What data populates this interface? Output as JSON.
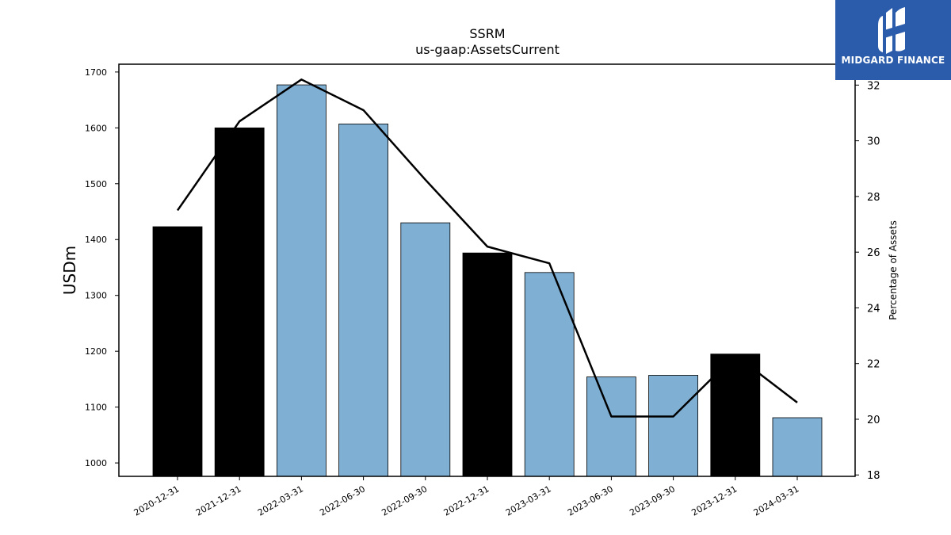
{
  "chart_data": {
    "type": "bar",
    "title": "SSRM",
    "subtitle": "us-gaap:AssetsCurrent",
    "ylabel": "USDm",
    "y2label": "Percentage of Assets",
    "categories": [
      "2020-12-31",
      "2021-12-31",
      "2022-03-31",
      "2022-06-30",
      "2022-09-30",
      "2022-12-31",
      "2023-03-31",
      "2023-06-30",
      "2023-09-30",
      "2023-12-31",
      "2024-03-31"
    ],
    "values": [
      1423,
      1600,
      1677,
      1607,
      1430,
      1376,
      1341,
      1154,
      1157,
      1195,
      1081
    ],
    "bar_colors": [
      "#000000",
      "#000000",
      "#7fb0d4",
      "#7fb0d4",
      "#7fb0d4",
      "#000000",
      "#7fb0d4",
      "#7fb0d4",
      "#7fb0d4",
      "#000000",
      "#7fb0d4"
    ],
    "ylim": [
      976,
      1714
    ],
    "yticks": [
      1000,
      1100,
      1200,
      1300,
      1400,
      1500,
      1600,
      1700
    ],
    "y2lim": [
      17.95,
      32.75
    ],
    "y2ticks": [
      18,
      20,
      22,
      24,
      26,
      28,
      30,
      32
    ],
    "pct_values": [
      27.5,
      30.7,
      32.2,
      31.1,
      28.6,
      26.2,
      25.6,
      20.1,
      20.1,
      22.3,
      20.6
    ],
    "line_color": "#000000",
    "grid": false
  },
  "logo": {
    "text": "MIDGARD FINANCE",
    "bg": "#2b5cab"
  }
}
